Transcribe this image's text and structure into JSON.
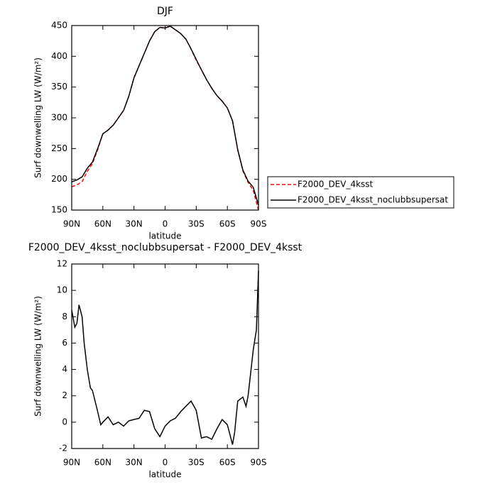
{
  "chart_data": [
    {
      "type": "line",
      "title": "DJF",
      "xlabel": "latitude",
      "ylabel": "Surf downwelling LW (W/m²)",
      "x": [
        90,
        85,
        80,
        75,
        70,
        65,
        60,
        55,
        50,
        45,
        40,
        35,
        30,
        25,
        20,
        15,
        10,
        5,
        0,
        -5,
        -10,
        -15,
        -20,
        -25,
        -30,
        -35,
        -40,
        -45,
        -50,
        -55,
        -60,
        -65,
        -70,
        -75,
        -80,
        -85,
        -90
      ],
      "series": [
        {
          "name": "F2000_DEV_4ksst",
          "color": "#ff0000",
          "dash": true,
          "values": [
            188,
            191,
            196,
            213,
            225.5,
            248,
            274,
            280,
            288,
            300,
            312,
            335,
            365,
            385,
            405,
            425,
            440,
            447,
            446,
            449,
            443,
            437,
            428,
            412,
            393.5,
            378,
            362,
            348,
            336,
            327,
            316,
            295,
            248,
            213.5,
            195,
            182,
            150
          ]
        },
        {
          "name": "F2000_DEV_4ksst_noclubbsupersat",
          "color": "#000000",
          "dash": false,
          "values": [
            196,
            199,
            204,
            218,
            228,
            250,
            274,
            280,
            288,
            300,
            312,
            335,
            365,
            385,
            405,
            425,
            440,
            447,
            446,
            449,
            443,
            437,
            428,
            412,
            395,
            378,
            362,
            348,
            336,
            327,
            316,
            295,
            248,
            215,
            197,
            187,
            158
          ]
        }
      ],
      "xlim": [
        90,
        -90
      ],
      "xticks": [
        {
          "value": 90,
          "label": "90N"
        },
        {
          "value": 60,
          "label": "60N"
        },
        {
          "value": 30,
          "label": "30N"
        },
        0,
        {
          "value": -30,
          "label": "30S"
        },
        {
          "value": -60,
          "label": "60S"
        },
        {
          "value": -90,
          "label": "90S"
        }
      ],
      "ylim": [
        150,
        450
      ],
      "yticks": [
        150,
        200,
        250,
        300,
        350,
        400,
        450
      ],
      "legend": "right"
    },
    {
      "type": "line",
      "title": "F2000_DEV_4ksst_noclubbsupersat - F2000_DEV_4ksst",
      "xlabel": "latitude",
      "ylabel": "Surf downwelling LW (W/m²)",
      "x": [
        90,
        87,
        85,
        83,
        80,
        78,
        75,
        72,
        70,
        65,
        62,
        60,
        55,
        50,
        45,
        40,
        35,
        30,
        25,
        20,
        15,
        10,
        5,
        0,
        -5,
        -10,
        -15,
        -20,
        -25,
        -30,
        -35,
        -40,
        -45,
        -50,
        -55,
        -60,
        -65,
        -67,
        -70,
        -75,
        -78,
        -80,
        -85,
        -88,
        -90
      ],
      "series": [
        {
          "color": "#000000",
          "dash": false,
          "values": [
            8.5,
            7.2,
            7.5,
            8.9,
            8,
            6,
            4,
            2.6,
            2.4,
            0.8,
            -0.2,
            0,
            0.4,
            -0.2,
            0,
            -0.3,
            0.1,
            0.2,
            0.3,
            0.9,
            0.8,
            -0.5,
            -1.1,
            -0.3,
            0.1,
            0.3,
            0.8,
            1.2,
            1.6,
            0.9,
            -1.2,
            -1.1,
            -1.3,
            -0.5,
            0.2,
            -0.2,
            -1.7,
            -0.8,
            1.6,
            1.9,
            1.2,
            2,
            5.5,
            7,
            11.5
          ]
        }
      ],
      "xlim": [
        90,
        -90
      ],
      "xticks": [
        {
          "value": 90,
          "label": "90N"
        },
        {
          "value": 60,
          "label": "60N"
        },
        {
          "value": 30,
          "label": "30N"
        },
        0,
        {
          "value": -30,
          "label": "30S"
        },
        {
          "value": -60,
          "label": "60S"
        },
        {
          "value": -90,
          "label": "90S"
        }
      ],
      "ylim": [
        -2,
        12
      ],
      "yticks": [
        -2,
        0,
        2,
        4,
        6,
        8,
        10,
        12
      ]
    }
  ]
}
